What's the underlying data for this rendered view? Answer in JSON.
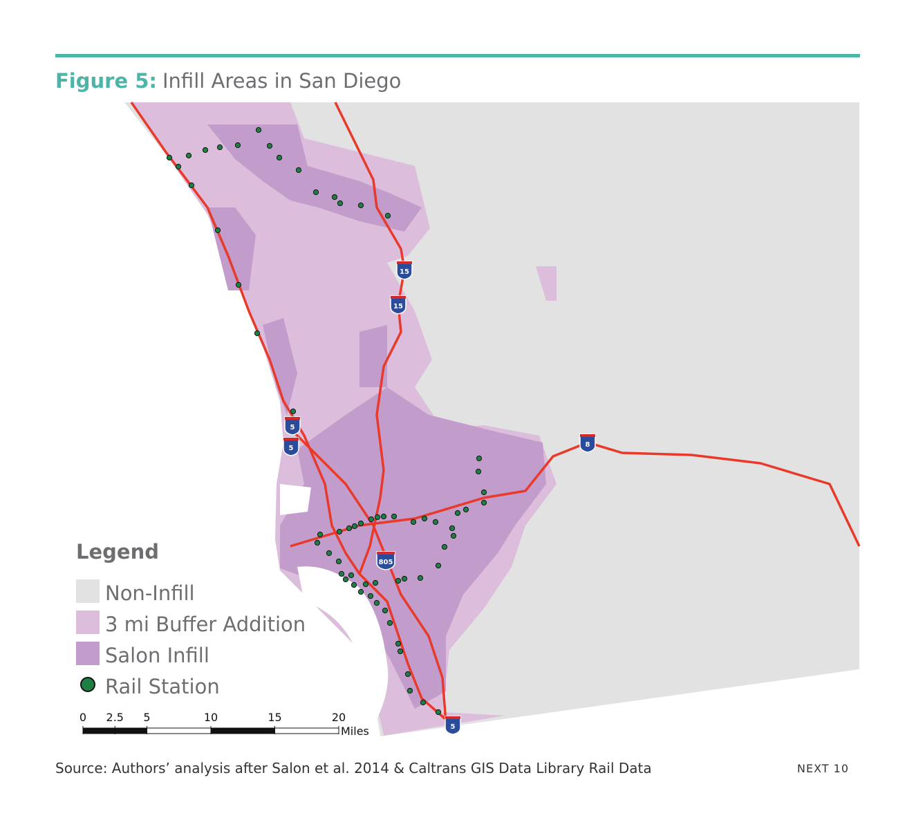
{
  "header": {
    "figure_label": "Figure 5:",
    "title": "Infill Areas in San Diego"
  },
  "legend": {
    "title": "Legend",
    "items": [
      {
        "label": "Non-Infill",
        "color": "#e2e2e2"
      },
      {
        "label": "3 mi Buffer Addition",
        "color": "#dcbedc"
      },
      {
        "label": "Salon Infill",
        "color": "#c29ccb"
      },
      {
        "label": "Rail Station",
        "color": "#1e7f45"
      }
    ]
  },
  "highways": [
    "15",
    "15",
    "5",
    "5",
    "8",
    "805",
    "5"
  ],
  "scale_bar": {
    "ticks": [
      0,
      2.5,
      5,
      10,
      15,
      20
    ],
    "unit": "Miles"
  },
  "footer": {
    "source": "Source: Authors’ analysis after Salon et al. 2014 & Caltrans GIS Data Library Rail Data",
    "brand": "NEXT 10"
  }
}
